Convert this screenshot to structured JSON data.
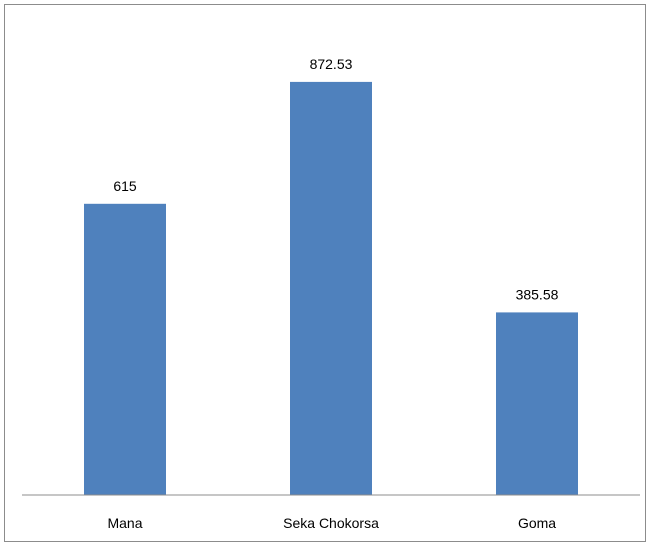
{
  "chart_data": {
    "type": "bar",
    "categories": [
      "Mana",
      "Seka Chokorsa",
      "Goma"
    ],
    "values": [
      615,
      872.53,
      385.58
    ],
    "value_labels": [
      "615",
      "872.53",
      "385.58"
    ],
    "title": "",
    "xlabel": "",
    "ylabel": "",
    "ylim": [
      0,
      1000
    ],
    "grid": false,
    "legend": "none",
    "bar_color": "#4F81BD",
    "axis_color": "#8C8C8C"
  }
}
